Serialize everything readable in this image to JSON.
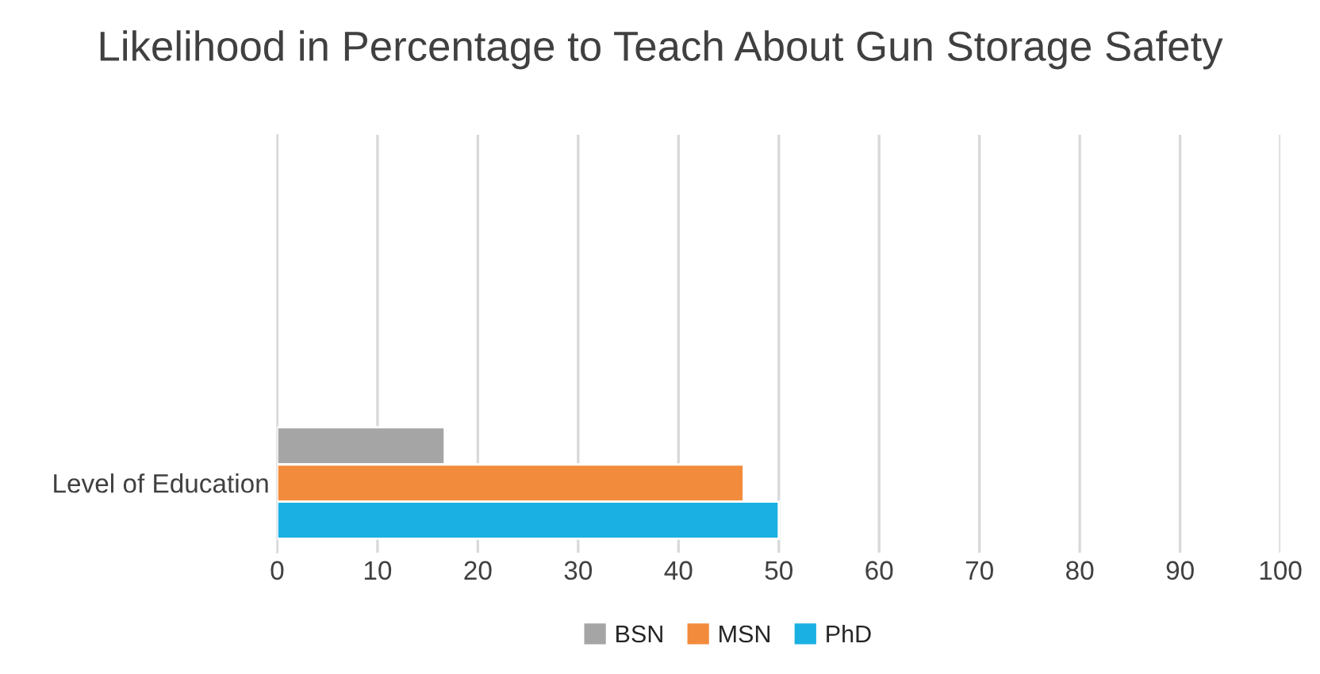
{
  "chart_data": {
    "type": "bar",
    "orientation": "horizontal",
    "title": "Likelihood in Percentage to Teach About Gun Storage Safety",
    "categories": [
      "Level of Education"
    ],
    "series": [
      {
        "name": "BSN",
        "color": "#a5a5a5",
        "values": [
          16.7
        ]
      },
      {
        "name": "MSN",
        "color": "#f28b3c",
        "values": [
          46.5
        ]
      },
      {
        "name": "PhD",
        "color": "#1ab0e3",
        "values": [
          50
        ]
      }
    ],
    "xlim": [
      0,
      100
    ],
    "xticks": [
      0,
      10,
      20,
      30,
      40,
      50,
      60,
      70,
      80,
      90,
      100
    ],
    "grid": "x",
    "legend": "bottom"
  }
}
